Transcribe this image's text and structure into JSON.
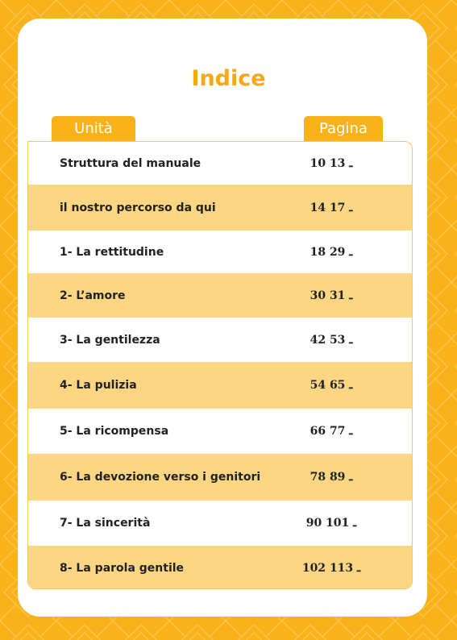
{
  "title": "Indice",
  "headers": {
    "unit": "Unità",
    "page": "Pagina"
  },
  "rows": [
    {
      "unit": "Struttura del manuale",
      "pages": "10 ـ 13"
    },
    {
      "unit": "il nostro percorso da qui",
      "pages": "14 ـ 17"
    },
    {
      "unit": "1- La rettitudine",
      "pages": "18 ـ 29"
    },
    {
      "unit": "2- L’amore",
      "pages": "30 ـ 31"
    },
    {
      "unit": "3- La gentilezza",
      "pages": "42 ـ 53"
    },
    {
      "unit": "4- La pulizia",
      "pages": "54 ـ 65"
    },
    {
      "unit": "5- La ricompensa",
      "pages": "66 ـ 77"
    },
    {
      "unit": "6- La devozione verso i genitori",
      "pages": "78 ـ 89"
    },
    {
      "unit": "7- La sincerità",
      "pages": "90 ـ 101"
    },
    {
      "unit": "8- La parola gentile",
      "pages": "102 ـ 113"
    }
  ],
  "colors": {
    "background": "#f9b21a",
    "title": "#f5a91a",
    "row_alt": "#fcd683"
  }
}
